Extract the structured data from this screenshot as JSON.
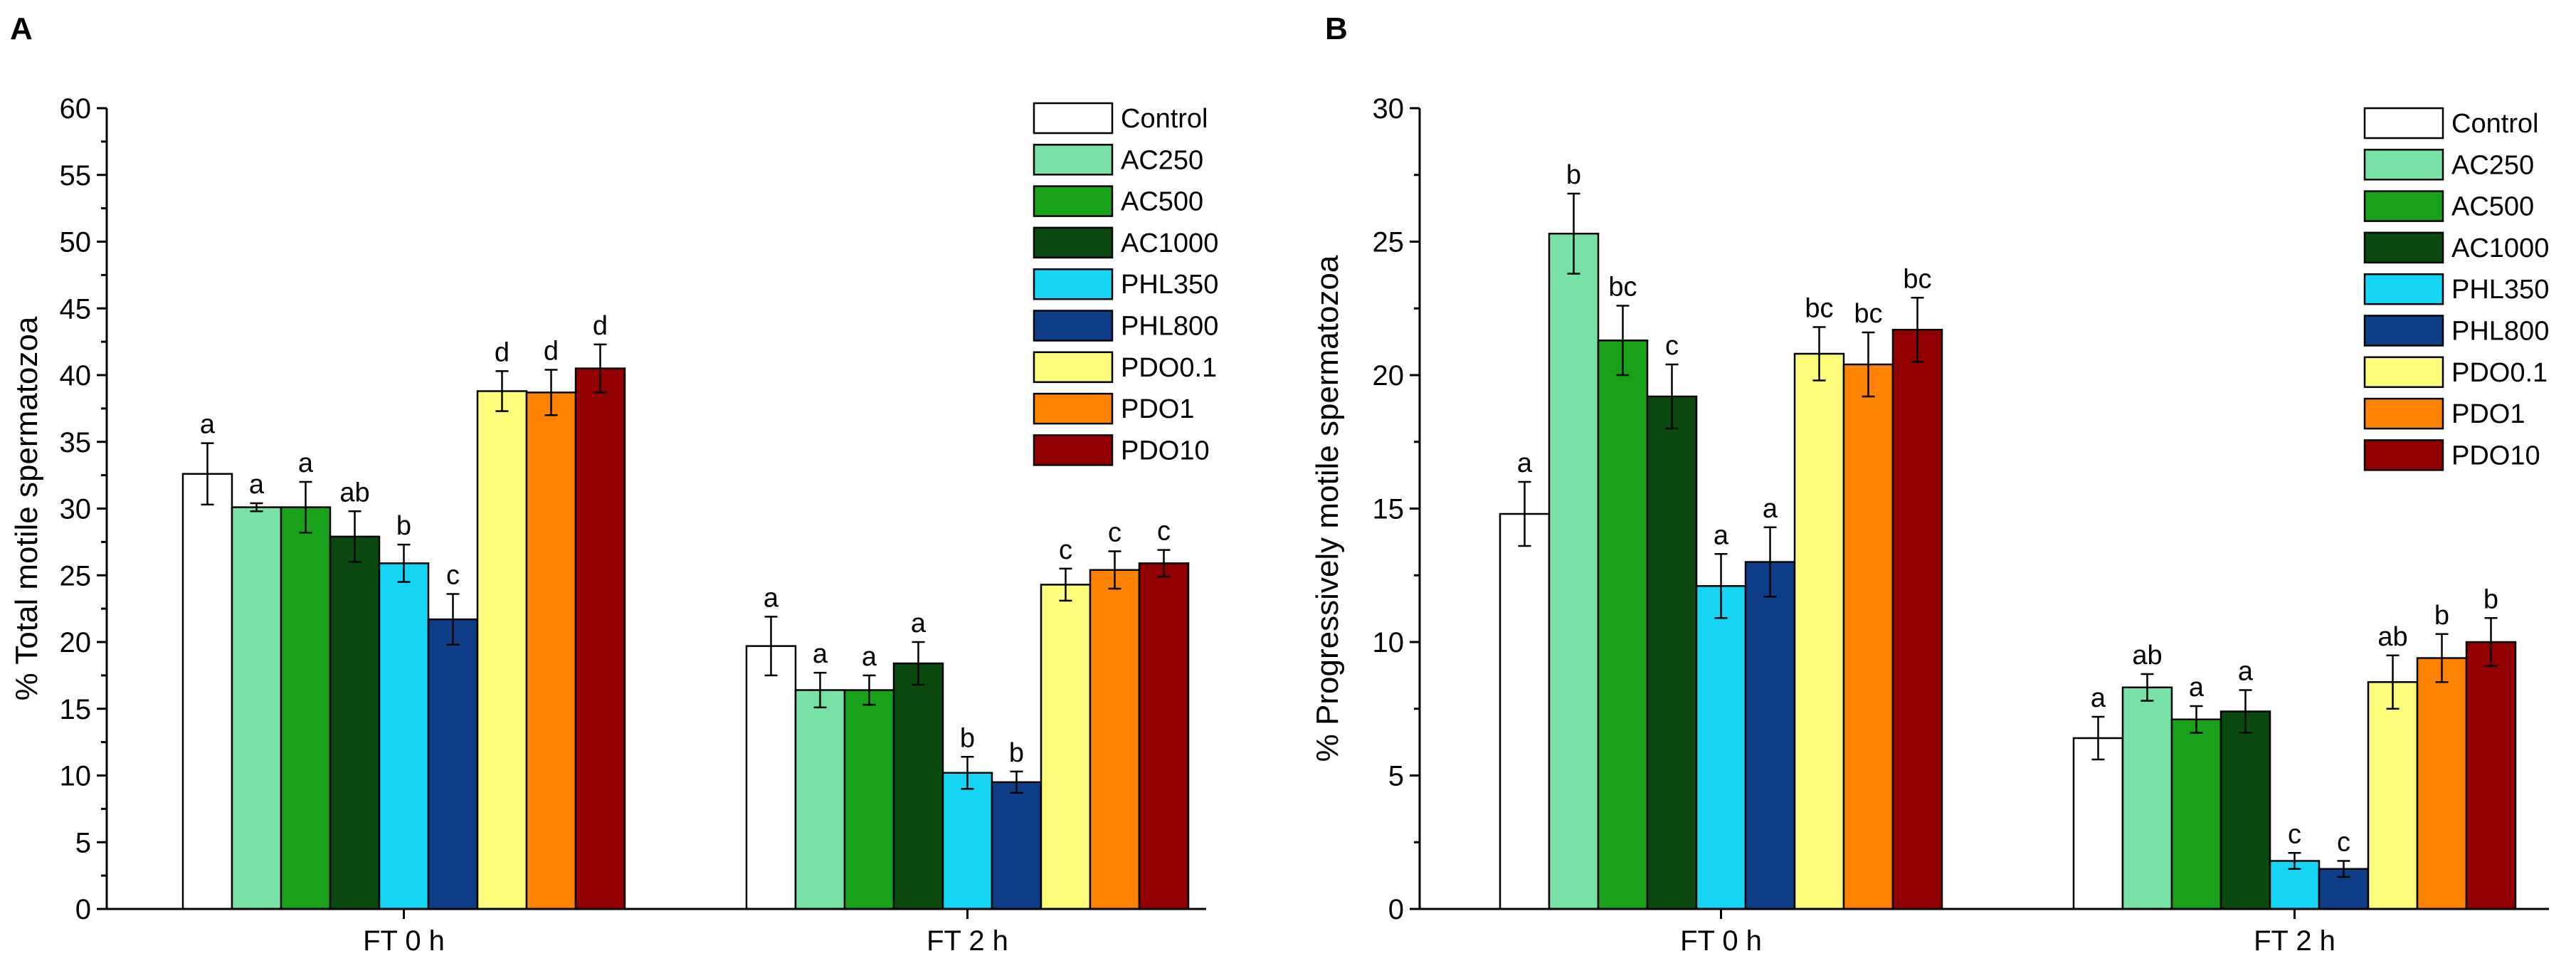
{
  "colors": {
    "Control": "#ffffff",
    "AC250": "#77e1a6",
    "AC500": "#19a11a",
    "AC1000": "#0b4a0e",
    "PHL350": "#15d4f4",
    "PHL800": "#0d3e87",
    "PDO0.1": "#fdfb7a",
    "PDO1": "#fe8302",
    "PDO10": "#930001"
  },
  "chart_data": [
    {
      "type": "bar",
      "panel_label": "A",
      "title": "",
      "xlabel": "",
      "ylabel": "% Total motile spermatozoa",
      "ylim": [
        0,
        60
      ],
      "yticks": [
        0,
        5,
        10,
        15,
        20,
        25,
        30,
        35,
        40,
        45,
        50,
        55,
        60
      ],
      "categories": [
        "FT 0 h",
        "FT 2 h"
      ],
      "legend_position": "top-right",
      "grid": false,
      "series": [
        {
          "name": "Control",
          "values": [
            32.6,
            19.7
          ],
          "errors": [
            2.3,
            2.2
          ],
          "letters": [
            "a",
            "a"
          ]
        },
        {
          "name": "AC250",
          "values": [
            30.1,
            16.4
          ],
          "errors": [
            0.3,
            1.3
          ],
          "letters": [
            "a",
            "a"
          ]
        },
        {
          "name": "AC500",
          "values": [
            30.1,
            16.4
          ],
          "errors": [
            1.9,
            1.1
          ],
          "letters": [
            "a",
            "a"
          ]
        },
        {
          "name": "AC1000",
          "values": [
            27.9,
            18.4
          ],
          "errors": [
            1.9,
            1.6
          ],
          "letters": [
            "ab",
            "a"
          ]
        },
        {
          "name": "PHL350",
          "values": [
            25.9,
            10.2
          ],
          "errors": [
            1.4,
            1.2
          ],
          "letters": [
            "b",
            "b"
          ]
        },
        {
          "name": "PHL800",
          "values": [
            21.7,
            9.5
          ],
          "errors": [
            1.9,
            0.8
          ],
          "letters": [
            "c",
            "b"
          ]
        },
        {
          "name": "PDO0.1",
          "values": [
            38.8,
            24.3
          ],
          "errors": [
            1.5,
            1.2
          ],
          "letters": [
            "d",
            "c"
          ]
        },
        {
          "name": "PDO1",
          "values": [
            38.7,
            25.4
          ],
          "errors": [
            1.7,
            1.4
          ],
          "letters": [
            "d",
            "c"
          ]
        },
        {
          "name": "PDO10",
          "values": [
            40.5,
            25.9
          ],
          "errors": [
            1.8,
            1.0
          ],
          "letters": [
            "d",
            "c"
          ]
        }
      ]
    },
    {
      "type": "bar",
      "panel_label": "B",
      "title": "",
      "xlabel": "",
      "ylabel": "% Progressively motile spermatozoa",
      "ylim": [
        0,
        30
      ],
      "yticks": [
        0,
        5,
        10,
        15,
        20,
        25,
        30
      ],
      "categories": [
        "FT 0 h",
        "FT 2 h"
      ],
      "legend_position": "top-right",
      "grid": false,
      "series": [
        {
          "name": "Control",
          "values": [
            14.8,
            6.4
          ],
          "errors": [
            1.2,
            0.8
          ],
          "letters": [
            "a",
            "a"
          ]
        },
        {
          "name": "AC250",
          "values": [
            25.3,
            8.3
          ],
          "errors": [
            1.5,
            0.5
          ],
          "letters": [
            "b",
            "ab"
          ]
        },
        {
          "name": "AC500",
          "values": [
            21.3,
            7.1
          ],
          "errors": [
            1.3,
            0.5
          ],
          "letters": [
            "bc",
            "a"
          ]
        },
        {
          "name": "AC1000",
          "values": [
            19.2,
            7.4
          ],
          "errors": [
            1.2,
            0.8
          ],
          "letters": [
            "c",
            "a"
          ]
        },
        {
          "name": "PHL350",
          "values": [
            12.1,
            1.8
          ],
          "errors": [
            1.2,
            0.3
          ],
          "letters": [
            "a",
            "c"
          ]
        },
        {
          "name": "PHL800",
          "values": [
            13.0,
            1.5
          ],
          "errors": [
            1.3,
            0.3
          ],
          "letters": [
            "a",
            "c"
          ]
        },
        {
          "name": "PDO0.1",
          "values": [
            20.8,
            8.5
          ],
          "errors": [
            1.0,
            1.0
          ],
          "letters": [
            "bc",
            "ab"
          ]
        },
        {
          "name": "PDO1",
          "values": [
            20.4,
            9.4
          ],
          "errors": [
            1.2,
            0.9
          ],
          "letters": [
            "bc",
            "b"
          ]
        },
        {
          "name": "PDO10",
          "values": [
            21.7,
            10.0
          ],
          "errors": [
            1.2,
            0.9
          ],
          "letters": [
            "bc",
            "b"
          ]
        }
      ]
    }
  ]
}
